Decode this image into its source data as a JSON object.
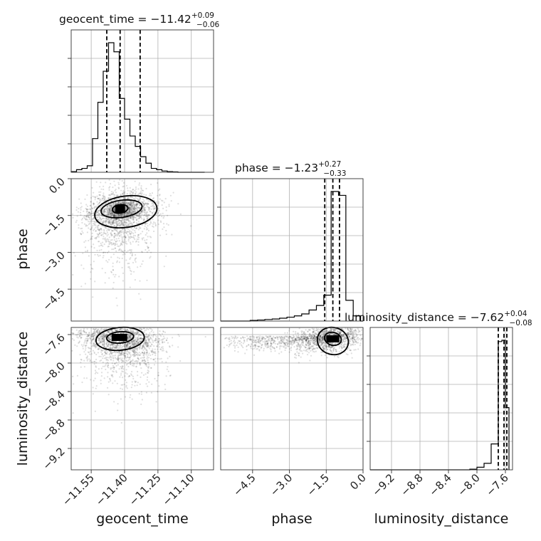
{
  "chart_data": {
    "type": "corner",
    "parameters": [
      "geocent_time",
      "phase",
      "luminosity_distance"
    ],
    "titles": {
      "geocent_time": {
        "label": "geocent_time",
        "median": "−11.42",
        "plus": "+0.09",
        "minus": "−0.06"
      },
      "phase": {
        "label": "phase",
        "median": "−1.23",
        "plus": "+0.27",
        "minus": "−0.33"
      },
      "luminosity_distance": {
        "label": "luminosity_distance",
        "median": "−7.62",
        "plus": "+0.04",
        "minus": "−0.08"
      }
    },
    "ranges": {
      "geocent_time": [
        -11.64,
        -11.0
      ],
      "phase": [
        -5.8,
        0.0
      ],
      "luminosity_distance": [
        -9.5,
        -7.5
      ]
    },
    "ticks": {
      "geocent_time": {
        "values": [
          -11.55,
          -11.4,
          -11.25,
          -11.1
        ],
        "labels": [
          "−11.55",
          "−11.40",
          "−11.25",
          "−11.10"
        ]
      },
      "phase": {
        "values": [
          0.0,
          -1.5,
          -3.0,
          -4.5
        ],
        "labels": [
          "0.0",
          "−1.5",
          "−3.0",
          "−4.5"
        ]
      },
      "luminosity_distance": {
        "values": [
          -7.6,
          -8.0,
          -8.4,
          -8.8,
          -9.2
        ],
        "labels": [
          "−7.6",
          "−8.0",
          "−8.4",
          "−8.8",
          "−9.2"
        ]
      }
    },
    "quantiles": {
      "geocent_time": [
        -11.48,
        -11.42,
        -11.33
      ],
      "phase": [
        -1.56,
        -1.23,
        -0.96
      ],
      "luminosity_distance": [
        -7.7,
        -7.62,
        -7.58
      ]
    },
    "histograms": {
      "geocent_time": {
        "edges": [
          -11.64,
          -11.616,
          -11.592,
          -11.568,
          -11.544,
          -11.52,
          -11.496,
          -11.472,
          -11.448,
          -11.424,
          -11.4,
          -11.376,
          -11.352,
          -11.328,
          -11.304,
          -11.28,
          -11.256,
          -11.232,
          -11.208,
          -11.184,
          -11.16,
          -11.136,
          -11.112,
          -11.088,
          -11.064,
          -11.04
        ],
        "counts": [
          0.005,
          0.02,
          0.03,
          0.05,
          0.26,
          0.54,
          0.78,
          1.0,
          0.93,
          0.57,
          0.41,
          0.28,
          0.2,
          0.12,
          0.07,
          0.03,
          0.02,
          0.01,
          0.005,
          0.003,
          0.0,
          0.0,
          0.0,
          0.0,
          0.0
        ]
      },
      "phase": {
        "edges": [
          -5.8,
          -5.5,
          -5.2,
          -4.9,
          -4.6,
          -4.3,
          -4.0,
          -3.7,
          -3.4,
          -3.1,
          -2.8,
          -2.5,
          -2.2,
          -1.9,
          -1.6,
          -1.3,
          -1.0,
          -0.7,
          -0.4,
          -0.1,
          0.0
        ],
        "counts": [
          0.0,
          0.0,
          0.0,
          0.0,
          0.005,
          0.008,
          0.012,
          0.016,
          0.022,
          0.03,
          0.04,
          0.055,
          0.085,
          0.12,
          0.2,
          1.0,
          0.97,
          0.16,
          0.04,
          0.0
        ]
      },
      "luminosity_distance": {
        "edges": [
          -9.5,
          -9.4,
          -9.3,
          -9.2,
          -9.1,
          -9.0,
          -8.9,
          -8.8,
          -8.7,
          -8.6,
          -8.5,
          -8.4,
          -8.3,
          -8.2,
          -8.1,
          -8.0,
          -7.9,
          -7.8,
          -7.7,
          -7.65,
          -7.6,
          -7.55
        ],
        "counts": [
          0.0,
          0.0,
          0.0,
          0.0,
          0.0,
          0.0,
          0.0,
          0.0,
          0.0,
          0.0,
          0.0,
          0.0,
          0.0,
          0.0,
          0.005,
          0.02,
          0.05,
          0.2,
          0.99,
          1.0,
          0.48
        ]
      }
    },
    "scatter_centers": {
      "phase_vs_geocent_time": {
        "x": -11.42,
        "y": -1.23
      },
      "luminosity_distance_vs_geocent_time": {
        "x": -11.42,
        "y": -7.62
      },
      "luminosity_distance_vs_phase": {
        "x": -1.23,
        "y": -7.62
      }
    },
    "grid": true
  }
}
